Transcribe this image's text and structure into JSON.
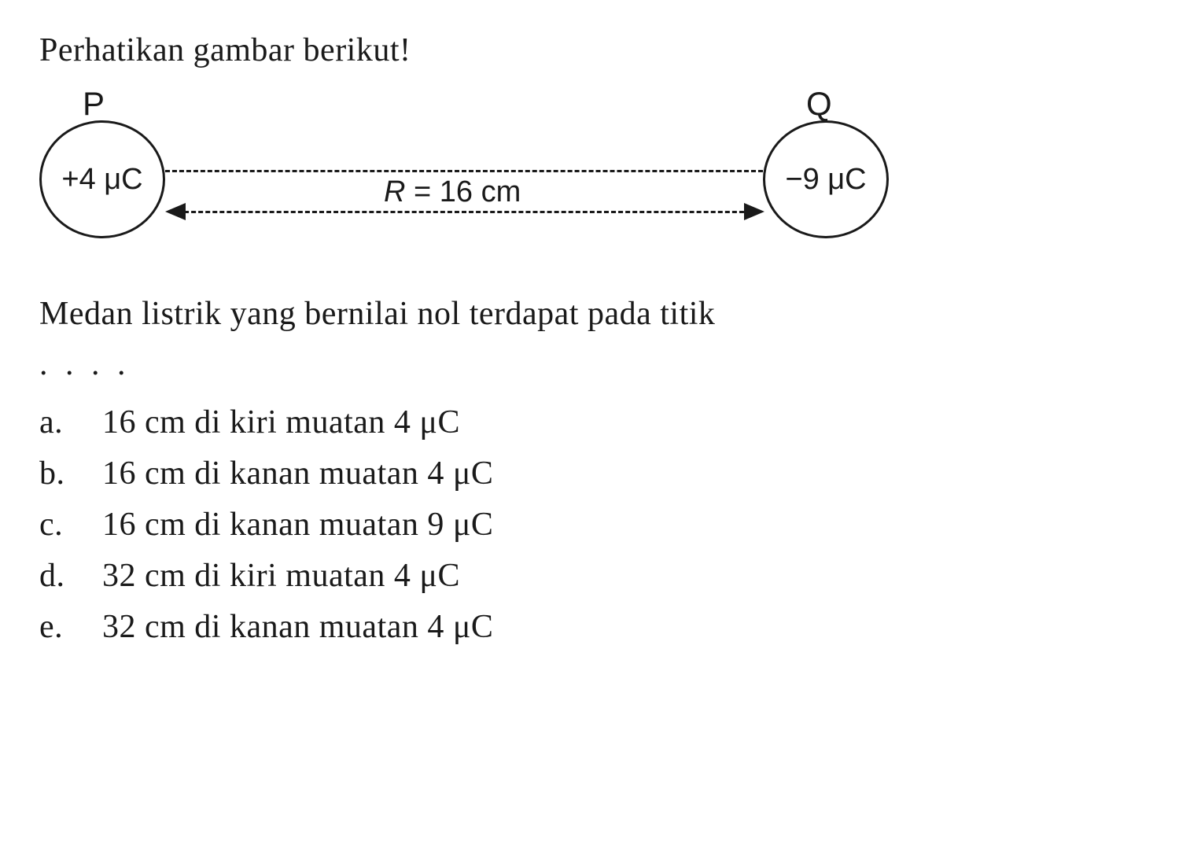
{
  "title": "Perhatikan gambar berikut!",
  "diagram": {
    "circle_p": {
      "label": "P",
      "value": "+4 μC"
    },
    "circle_q": {
      "label": "Q",
      "value": "−9 μC"
    },
    "distance_var": "R",
    "distance_eq": " = 16 cm",
    "colors": {
      "stroke": "#1a1a1a",
      "background": "#ffffff"
    }
  },
  "question": "Medan listrik yang bernilai nol terdapat pada titik",
  "dots": ". . . .",
  "options": {
    "a": {
      "letter": "a.",
      "text": "16 cm di kiri muatan 4 μC"
    },
    "b": {
      "letter": "b.",
      "text": "16 cm di kanan muatan 4 μC"
    },
    "c": {
      "letter": "c.",
      "text": "16 cm di kanan muatan 9 μC"
    },
    "d": {
      "letter": "d.",
      "text": "32 cm di kiri muatan 4 μC"
    },
    "e": {
      "letter": "e.",
      "text": "32 cm di kanan muatan 4 μC"
    }
  }
}
